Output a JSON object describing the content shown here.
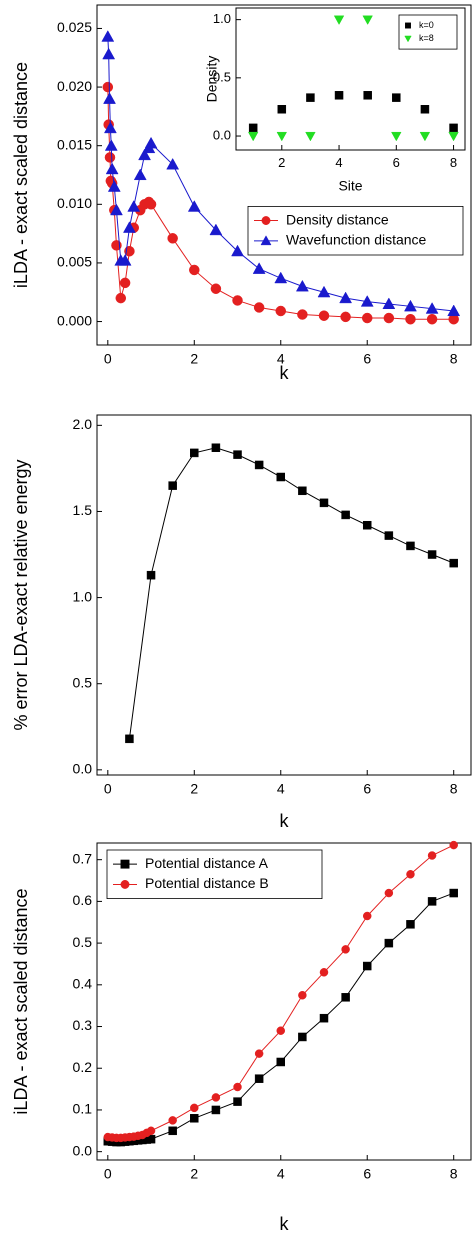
{
  "chart_data": [
    {
      "type": "line",
      "x_label": "k",
      "y_label": "iLDA - exact scaled distance",
      "xlim": [
        -0.25,
        8.4
      ],
      "ylim": [
        -0.002,
        0.027
      ],
      "xticks": [
        0,
        2,
        4,
        6,
        8
      ],
      "yticks": [
        {
          "value": 0,
          "label": "0.000"
        },
        0.005,
        {
          "value": 0.01,
          "label": "0.010"
        },
        0.015,
        {
          "value": 0.02,
          "label": "0.020"
        },
        0.025
      ],
      "legend": "lower right",
      "series": [
        {
          "name": "Density distance",
          "color": "#e32020",
          "marker": "circle",
          "x": [
            0,
            0.02,
            0.05,
            0.07,
            0.1,
            0.15,
            0.2,
            0.3,
            0.4,
            0.5,
            0.6,
            0.75,
            0.85,
            0.95,
            1.0,
            1.5,
            2.0,
            2.5,
            3.0,
            3.5,
            4.0,
            4.5,
            5.0,
            5.5,
            6.0,
            6.5,
            7.0,
            7.5,
            8.0
          ],
          "values": [
            0.02,
            0.0168,
            0.014,
            0.012,
            0.0118,
            0.0095,
            0.0065,
            0.002,
            0.0033,
            0.006,
            0.008,
            0.0095,
            0.01,
            0.0102,
            0.01,
            0.0071,
            0.0044,
            0.0028,
            0.0018,
            0.0012,
            0.0009,
            0.0006,
            0.0005,
            0.0004,
            0.0003,
            0.0003,
            0.0002,
            0.0002,
            0.0002
          ]
        },
        {
          "name": "Wavefunction distance",
          "color": "#1a1acd",
          "marker": "triangle-up",
          "x": [
            0,
            0.02,
            0.04,
            0.06,
            0.08,
            0.1,
            0.15,
            0.2,
            0.3,
            0.4,
            0.5,
            0.6,
            0.75,
            0.85,
            0.95,
            1.0,
            1.5,
            2.0,
            2.5,
            3.0,
            3.5,
            4.0,
            4.5,
            5.0,
            5.5,
            6.0,
            6.5,
            7.0,
            7.5,
            8.0
          ],
          "values": [
            0.0243,
            0.0228,
            0.019,
            0.0165,
            0.015,
            0.013,
            0.0115,
            0.0095,
            0.0052,
            0.0052,
            0.008,
            0.0098,
            0.0125,
            0.0142,
            0.0148,
            0.0152,
            0.0134,
            0.0098,
            0.0078,
            0.006,
            0.0045,
            0.0037,
            0.003,
            0.0025,
            0.002,
            0.0017,
            0.0015,
            0.0013,
            0.0011,
            0.0009
          ]
        }
      ]
    },
    {
      "type": "scatter",
      "x_label": "Site",
      "y_label": "Density",
      "xlim": [
        0.4,
        8.4
      ],
      "ylim": [
        -0.12,
        1.1
      ],
      "xticks": [
        2,
        4,
        6,
        8
      ],
      "yticks": [
        {
          "value": 0,
          "label": "0.0"
        },
        0.5,
        {
          "value": 1,
          "label": "1.0"
        }
      ],
      "legend": "upper right",
      "series": [
        {
          "name": "k=0",
          "color": "#000000",
          "marker": "square",
          "x": [
            1,
            2,
            3,
            4,
            5,
            6,
            7,
            8
          ],
          "values": [
            0.07,
            0.23,
            0.33,
            0.35,
            0.35,
            0.33,
            0.23,
            0.07
          ]
        },
        {
          "name": "k=8",
          "color": "#22dd22",
          "marker": "triangle-down",
          "x": [
            1,
            2,
            3,
            4,
            5,
            6,
            7,
            8
          ],
          "values": [
            0,
            0,
            0,
            1,
            1,
            0,
            0,
            0
          ]
        }
      ]
    },
    {
      "type": "line",
      "x_label": "k",
      "y_label": "% error LDA-exact relative energy",
      "xlim": [
        -0.25,
        8.4
      ],
      "ylim": [
        -0.03,
        2.06
      ],
      "xticks": [
        0,
        2,
        4,
        6,
        8
      ],
      "yticks": [
        {
          "value": 0,
          "label": "0.0"
        },
        0.5,
        {
          "value": 1,
          "label": "1.0"
        },
        1.5,
        {
          "value": 2,
          "label": "2.0"
        }
      ],
      "series": [
        {
          "color": "#000000",
          "marker": "square",
          "x": [
            0.5,
            1.0,
            1.5,
            2.0,
            2.5,
            3.0,
            3.5,
            4.0,
            4.5,
            5.0,
            5.5,
            6.0,
            6.5,
            7.0,
            7.5,
            8.0
          ],
          "values": [
            0.18,
            1.13,
            1.65,
            1.84,
            1.87,
            1.83,
            1.77,
            1.7,
            1.62,
            1.55,
            1.48,
            1.42,
            1.36,
            1.3,
            1.25,
            1.2
          ]
        }
      ]
    },
    {
      "type": "line",
      "x_label": "k",
      "y_label": "iLDA - exact scaled distance",
      "xlim": [
        -0.25,
        8.4
      ],
      "ylim": [
        -0.02,
        0.74
      ],
      "xticks": [
        0,
        2,
        4,
        6,
        8
      ],
      "yticks": [
        {
          "value": 0,
          "label": "0.0"
        },
        0.1,
        0.2,
        0.3,
        0.4,
        0.5,
        0.6,
        0.7
      ],
      "legend": "upper left",
      "series": [
        {
          "name": "Potential distance A",
          "color": "#000000",
          "marker": "square",
          "x": [
            0,
            0.1,
            0.2,
            0.3,
            0.4,
            0.5,
            0.6,
            0.7,
            0.8,
            0.9,
            1.0,
            1.5,
            2.0,
            2.5,
            3.0,
            3.5,
            4.0,
            4.5,
            5.0,
            5.5,
            6.0,
            6.5,
            7.0,
            7.5,
            8.0
          ],
          "values": [
            0.025,
            0.024,
            0.023,
            0.023,
            0.024,
            0.025,
            0.026,
            0.027,
            0.028,
            0.029,
            0.03,
            0.05,
            0.08,
            0.1,
            0.12,
            0.175,
            0.215,
            0.275,
            0.32,
            0.37,
            0.445,
            0.5,
            0.545,
            0.6,
            0.62
          ]
        },
        {
          "name": "Potential distance B",
          "color": "#e32020",
          "marker": "circle",
          "x": [
            0,
            0.1,
            0.2,
            0.3,
            0.4,
            0.5,
            0.6,
            0.7,
            0.8,
            0.9,
            1.0,
            1.5,
            2.0,
            2.5,
            3.0,
            3.5,
            4.0,
            4.5,
            5.0,
            5.5,
            6.0,
            6.5,
            7.0,
            7.5,
            8.0
          ],
          "values": [
            0.035,
            0.034,
            0.033,
            0.033,
            0.034,
            0.035,
            0.036,
            0.038,
            0.04,
            0.045,
            0.05,
            0.075,
            0.105,
            0.13,
            0.155,
            0.235,
            0.29,
            0.375,
            0.43,
            0.485,
            0.565,
            0.62,
            0.665,
            0.71,
            0.735
          ]
        }
      ]
    }
  ]
}
